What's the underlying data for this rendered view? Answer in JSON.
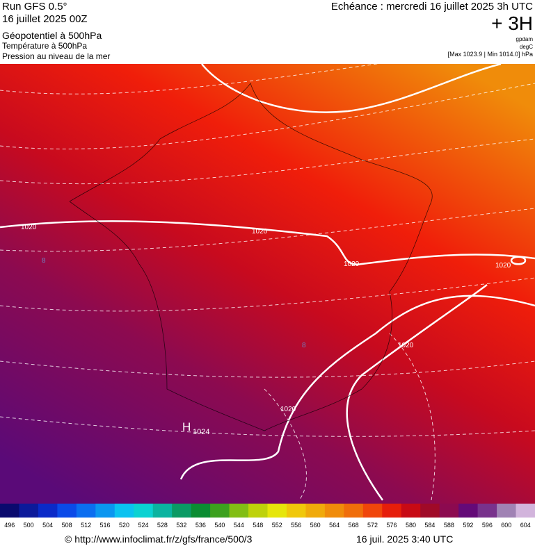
{
  "header": {
    "left": [
      "Run GFS 0.5°",
      "16 juillet 2025 00Z",
      "Géopotentiel à 500hPa",
      "Température à 500hPa",
      "Pression au niveau de la mer"
    ],
    "echeance": "Echéance : mercredi 16 juillet 2025 3h UTC",
    "step": "+ 3H",
    "units": [
      "gpdam",
      "degC"
    ],
    "range": "[Max 1023.9 | Min 1014.0] hPa"
  },
  "map": {
    "isobar_labels": [
      "1020",
      "1020",
      "1020",
      "1020",
      "1020",
      "1020"
    ],
    "high": {
      "letter": "H",
      "value": "1024"
    },
    "temperature_labels": [
      "8",
      "8"
    ]
  },
  "colorbar": {
    "values": [
      496,
      500,
      504,
      508,
      512,
      516,
      520,
      524,
      528,
      532,
      536,
      540,
      544,
      548,
      552,
      556,
      560,
      564,
      568,
      572,
      576,
      580,
      584,
      588,
      592,
      596,
      600,
      604
    ],
    "colors": [
      "#0a0a6e",
      "#0c1a9a",
      "#0a2ac8",
      "#0a4ae8",
      "#0a6ef0",
      "#0a96f0",
      "#0ac2f0",
      "#0ad2d2",
      "#0ab4a0",
      "#0a9a64",
      "#0a8c32",
      "#3ca01e",
      "#82be14",
      "#bed20a",
      "#e6e60a",
      "#f0c80a",
      "#f0aa0a",
      "#f08c0a",
      "#f06e0a",
      "#f0460a",
      "#e61e0a",
      "#c80a14",
      "#a00a28",
      "#8c0a50",
      "#640a78",
      "#78328c",
      "#a082b4",
      "#d2b4dc"
    ]
  },
  "footer": {
    "source": "© http://www.infoclimat.fr/z/gfs/france/500/3",
    "time": "16 juil. 2025  3:40 UTC"
  }
}
